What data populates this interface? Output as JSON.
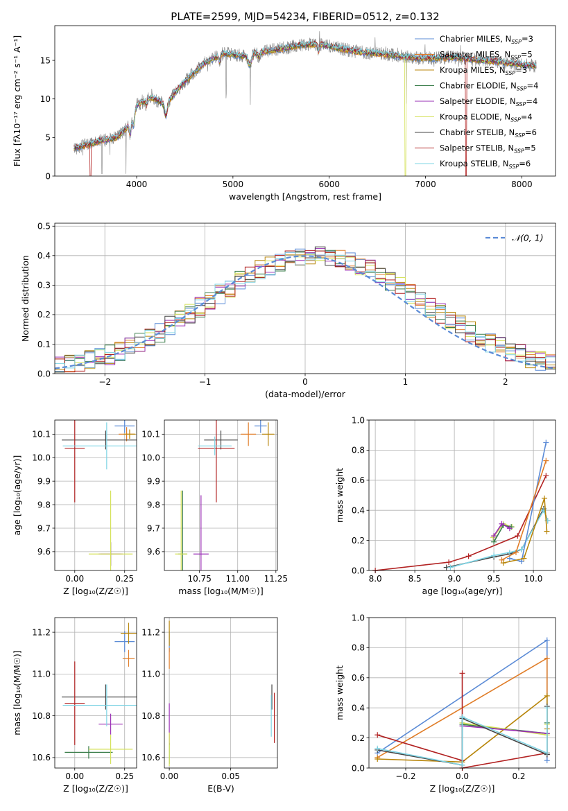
{
  "figure": {
    "title": "PLATE=2599, MJD=54234, FIBERID=0512, z=0.132"
  },
  "models": [
    {
      "name": "Chabrier MILES",
      "nssp": "3",
      "color": "#5b8bd6"
    },
    {
      "name": "Salpeter MILES",
      "nssp": "5",
      "color": "#e07d28"
    },
    {
      "name": "Kroupa MILES",
      "nssp": "3",
      "color": "#b8860b"
    },
    {
      "name": "Chabrier ELODIE",
      "nssp": "4",
      "color": "#3a7d4a"
    },
    {
      "name": "Salpeter ELODIE",
      "nssp": "4",
      "color": "#9a2fb5"
    },
    {
      "name": "Kroupa ELODIE",
      "nssp": "4",
      "color": "#d4e157"
    },
    {
      "name": "Chabrier STELIB",
      "nssp": "6",
      "color": "#454545"
    },
    {
      "name": "Salpeter STELIB",
      "nssp": "5",
      "color": "#b22222"
    },
    {
      "name": "Kroupa STELIB",
      "nssp": "6",
      "color": "#7fd4e4"
    }
  ],
  "chart_data": [
    {
      "id": "spectrum",
      "type": "line",
      "xlabel": "wavelength [Angstrom, rest frame]",
      "ylabel": "Flux [fλ10⁻¹⁷ erg cm⁻² s⁻¹ A⁻¹]",
      "xlim": [
        3150,
        8350
      ],
      "ylim": [
        0,
        19.5
      ],
      "xticks": [
        4000,
        5000,
        6000,
        7000,
        8000
      ],
      "yticks": [
        0,
        5,
        10,
        15
      ],
      "grid": false,
      "legend": "top-right",
      "data_color": "#808080",
      "continuum": {
        "x": [
          3350,
          3600,
          3800,
          3900,
          4000,
          4150,
          4300,
          4500,
          4700,
          4900,
          5100,
          5300,
          5500,
          5700,
          5900,
          6100,
          6300,
          6500,
          6700,
          6900,
          7100,
          7300,
          7500,
          7700,
          7900,
          8150
        ],
        "y": [
          3.6,
          4.5,
          5.0,
          6.3,
          9.2,
          10.2,
          9.3,
          12.3,
          14.6,
          15.9,
          15.6,
          16.1,
          16.5,
          17.0,
          17.1,
          16.6,
          16.1,
          15.9,
          15.6,
          15.3,
          15.3,
          15.4,
          15.1,
          14.9,
          14.6,
          14.3
        ]
      },
      "data_dropouts": [
        3640,
        3890,
        4930,
        5180,
        6800
      ],
      "model_dropouts": [
        {
          "model": "Salpeter STELIB",
          "x": 7420
        },
        {
          "model": "Salpeter STELIB",
          "x": 3520
        },
        {
          "model": "Kroupa ELODIE",
          "x": 6790
        }
      ]
    },
    {
      "id": "residuals",
      "type": "line",
      "xlabel": "(data-model)/error",
      "ylabel": "Normed distribution",
      "xlim": [
        -2.5,
        2.5
      ],
      "ylim": [
        0,
        0.51
      ],
      "xticks": [
        -2,
        -1,
        0,
        1,
        2
      ],
      "yticks": [
        0.0,
        0.1,
        0.2,
        0.3,
        0.4,
        0.5
      ],
      "grid": true,
      "legend": "top-right",
      "reference_label": "𝒩(0, 1)",
      "reference_color": "#5b8bd6",
      "bin_width": 0.1
    },
    {
      "id": "age-vs-Z",
      "type": "scatter",
      "xlabel": "Z [log₁₀(Z/Z☉)]",
      "ylabel": "age  [log₁₀(age/yr)]",
      "xlim": [
        -0.1,
        0.31
      ],
      "ylim": [
        9.52,
        10.16
      ],
      "xticks": [
        0.0,
        0.25
      ],
      "yticks": [
        9.6,
        9.7,
        9.8,
        9.9,
        10.0,
        10.1
      ],
      "grid": true,
      "points": [
        {
          "model": "Chabrier MILES",
          "x": 0.25,
          "y": 10.135,
          "xerr": 0.05,
          "yerr": 0.03
        },
        {
          "model": "Salpeter MILES",
          "x": 0.26,
          "y": 10.1,
          "xerr": 0.04,
          "yerr": 0.03
        },
        {
          "model": "Kroupa MILES",
          "x": 0.275,
          "y": 10.1,
          "xerr": 0.03,
          "yerr": 0.02
        },
        {
          "model": "Chabrier ELODIE",
          "x": 0.18,
          "y": 9.59,
          "xerr": 0.05,
          "yerr": 0.05
        },
        {
          "model": "Salpeter ELODIE",
          "x": 0.18,
          "y": 9.59,
          "xerr": 0.06,
          "yerr": 0.05
        },
        {
          "model": "Kroupa ELODIE",
          "x": 0.18,
          "y": 9.59,
          "xerr": 0.11,
          "yerr": 0.27
        },
        {
          "model": "Chabrier STELIB",
          "x": 0.155,
          "y": 10.075,
          "xerr": 0.22,
          "yerr": 0.04
        },
        {
          "model": "Salpeter STELIB",
          "x": 0.0,
          "y": 10.04,
          "xerr": 0.05,
          "yerr": 0.23
        },
        {
          "model": "Kroupa STELIB",
          "x": 0.16,
          "y": 10.05,
          "xerr": 0.22,
          "yerr": 0.1
        }
      ]
    },
    {
      "id": "age-vs-mass",
      "type": "scatter",
      "xlabel": "mass [log₁₀(M/M☉)]",
      "ylabel": "",
      "xlim": [
        10.52,
        11.26
      ],
      "ylim": [
        9.52,
        10.16
      ],
      "xticks": [
        10.75,
        11.0,
        11.25
      ],
      "yticks": [
        9.6,
        9.7,
        9.8,
        9.9,
        10.0,
        10.1
      ],
      "grid": true,
      "points": [
        {
          "model": "Chabrier MILES",
          "x": 11.15,
          "y": 10.135,
          "xerr": 0.04,
          "yerr": 0.03
        },
        {
          "model": "Salpeter MILES",
          "x": 11.07,
          "y": 10.1,
          "xerr": 0.05,
          "yerr": 0.05
        },
        {
          "model": "Kroupa MILES",
          "x": 11.2,
          "y": 10.1,
          "xerr": 0.04,
          "yerr": 0.05
        },
        {
          "model": "Chabrier ELODIE",
          "x": 10.64,
          "y": 9.59,
          "xerr": 0.03,
          "yerr": 0.27
        },
        {
          "model": "Salpeter ELODIE",
          "x": 10.76,
          "y": 9.59,
          "xerr": 0.05,
          "yerr": 0.25
        },
        {
          "model": "Kroupa ELODIE",
          "x": 10.63,
          "y": 9.59,
          "xerr": 0.04,
          "yerr": 0.27
        },
        {
          "model": "Chabrier STELIB",
          "x": 10.89,
          "y": 10.075,
          "xerr": 0.11,
          "yerr": 0.04
        },
        {
          "model": "Salpeter STELIB",
          "x": 10.86,
          "y": 10.04,
          "xerr": 0.12,
          "yerr": 0.23
        },
        {
          "model": "Kroupa STELIB",
          "x": 10.85,
          "y": 10.05,
          "xerr": 0.11,
          "yerr": 0.04
        }
      ]
    },
    {
      "id": "mass-weight-vs-age",
      "type": "line",
      "xlabel": "age  [log₁₀(age/yr)]",
      "ylabel": "mass weight",
      "xlim": [
        7.92,
        10.28
      ],
      "ylim": [
        0,
        1.0
      ],
      "xticks": [
        8.0,
        8.5,
        9.0,
        9.5,
        10.0
      ],
      "yticks": [
        0.0,
        0.2,
        0.4,
        0.6,
        0.8,
        1.0
      ],
      "grid": true,
      "series": [
        {
          "model": "Kroupa ELODIE",
          "x": [
            9.49,
            9.62,
            9.73
          ],
          "y": [
            0.22,
            0.31,
            0.29
          ]
        },
        {
          "model": "Chabrier ELODIE",
          "x": [
            9.5,
            9.62,
            9.72
          ],
          "y": [
            0.19,
            0.3,
            0.29
          ]
        },
        {
          "model": "Salpeter ELODIE",
          "x": [
            9.5,
            9.6,
            9.7
          ],
          "y": [
            0.23,
            0.31,
            0.28
          ]
        },
        {
          "model": "Salpeter STELIB",
          "x": [
            8.0,
            8.93,
            9.18,
            9.8,
            10.16
          ],
          "y": [
            0.0,
            0.055,
            0.095,
            0.23,
            0.63
          ]
        },
        {
          "model": "Chabrier STELIB",
          "x": [
            8.9,
            9.5,
            9.7,
            9.85,
            10.13,
            10.18
          ],
          "y": [
            0.02,
            0.09,
            0.11,
            0.14,
            0.41,
            0.33
          ]
        },
        {
          "model": "Kroupa STELIB",
          "x": [
            8.95,
            9.5,
            9.7,
            9.85,
            10.13,
            10.18
          ],
          "y": [
            0.02,
            0.1,
            0.12,
            0.14,
            0.4,
            0.33
          ]
        },
        {
          "model": "Chabrier MILES",
          "x": [
            9.7,
            9.85,
            10.16
          ],
          "y": [
            0.08,
            0.06,
            0.85
          ]
        },
        {
          "model": "Salpeter MILES",
          "x": [
            9.6,
            9.78,
            10.16
          ],
          "y": [
            0.07,
            0.12,
            0.73
          ]
        },
        {
          "model": "Kroupa MILES",
          "x": [
            9.62,
            9.88,
            10.14,
            10.17
          ],
          "y": [
            0.05,
            0.08,
            0.48,
            0.26
          ]
        }
      ]
    },
    {
      "id": "mass-vs-Z",
      "type": "scatter",
      "xlabel": "Z [log₁₀(Z/Z☉)]",
      "ylabel": "mass [log₁₀(M/M☉)]",
      "xlim": [
        -0.1,
        0.31
      ],
      "ylim": [
        10.55,
        11.27
      ],
      "xticks": [
        0.0,
        0.25
      ],
      "yticks": [
        10.6,
        10.8,
        11.0,
        11.2
      ],
      "grid": true,
      "points": [
        {
          "model": "Chabrier MILES",
          "x": 0.25,
          "y": 11.155,
          "xerr": 0.05,
          "yerr": 0.05
        },
        {
          "model": "Salpeter MILES",
          "x": 0.27,
          "y": 11.075,
          "xerr": 0.03,
          "yerr": 0.04
        },
        {
          "model": "Kroupa MILES",
          "x": 0.27,
          "y": 11.195,
          "xerr": 0.04,
          "yerr": 0.05
        },
        {
          "model": "Chabrier ELODIE",
          "x": 0.07,
          "y": 10.625,
          "xerr": 0.12,
          "yerr": 0.03
        },
        {
          "model": "Salpeter ELODIE",
          "x": 0.18,
          "y": 10.76,
          "xerr": 0.06,
          "yerr": 0.05
        },
        {
          "model": "Kroupa ELODIE",
          "x": 0.18,
          "y": 10.64,
          "xerr": 0.11,
          "yerr": 0.07
        },
        {
          "model": "Chabrier STELIB",
          "x": 0.155,
          "y": 10.89,
          "xerr": 0.22,
          "yerr": 0.06
        },
        {
          "model": "Salpeter STELIB",
          "x": 0.0,
          "y": 10.86,
          "xerr": 0.05,
          "yerr": 0.2
        },
        {
          "model": "Kroupa STELIB",
          "x": 0.16,
          "y": 10.85,
          "xerr": 0.22,
          "yerr": 0.1
        }
      ]
    },
    {
      "id": "mass-vs-EBV",
      "type": "scatter",
      "xlabel": "E(B-V)",
      "ylabel": "",
      "xlim": [
        -0.004,
        0.088
      ],
      "ylim": [
        10.55,
        11.27
      ],
      "xticks": [
        0.0,
        0.05
      ],
      "yticks": [
        10.6,
        10.8,
        11.0,
        11.2
      ],
      "grid": true,
      "points": [
        {
          "model": "Chabrier MILES",
          "x": 0.0,
          "y": 11.155,
          "yerr": 0.05
        },
        {
          "model": "Salpeter MILES",
          "x": 0.0,
          "y": 11.075,
          "yerr": 0.05
        },
        {
          "model": "Kroupa MILES",
          "x": 0.0,
          "y": 11.195,
          "yerr": 0.06
        },
        {
          "model": "Chabrier ELODIE",
          "x": 0.0,
          "y": 10.62,
          "yerr": 0.05
        },
        {
          "model": "Salpeter ELODIE",
          "x": 0.0,
          "y": 10.76,
          "yerr": 0.1
        },
        {
          "model": "Kroupa ELODIE",
          "x": 0.0,
          "y": 10.64,
          "yerr": 0.08
        },
        {
          "model": "Chabrier STELIB",
          "x": 0.0835,
          "y": 10.89,
          "yerr": 0.06
        },
        {
          "model": "Salpeter STELIB",
          "x": 0.0855,
          "y": 10.79,
          "yerr": 0.12
        },
        {
          "model": "Kroupa STELIB",
          "x": 0.083,
          "y": 10.8,
          "yerr": 0.1
        }
      ]
    },
    {
      "id": "mass-weight-vs-Z",
      "type": "line",
      "xlabel": "Z [log₁₀(Z/Z☉)]",
      "ylabel": "mass weight",
      "xlim": [
        -0.33,
        0.33
      ],
      "ylim": [
        0,
        1.0
      ],
      "xticks": [
        -0.2,
        0.0,
        0.2
      ],
      "yticks": [
        0.0,
        0.2,
        0.4,
        0.6,
        0.8,
        1.0
      ],
      "grid": true,
      "series": [
        {
          "model": "Chabrier MILES",
          "x": [
            -0.3,
            0.3,
            0.3
          ],
          "y": [
            0.1,
            0.85,
            0.05
          ]
        },
        {
          "model": "Salpeter MILES",
          "x": [
            -0.3,
            0.3,
            0.3
          ],
          "y": [
            0.07,
            0.73,
            0.1
          ]
        },
        {
          "model": "Kroupa MILES",
          "x": [
            -0.3,
            0.0,
            0.3,
            0.3
          ],
          "y": [
            0.06,
            0.04,
            0.48,
            0.26
          ]
        },
        {
          "model": "Chabrier ELODIE",
          "x": [
            0.0,
            0.3,
            0.3
          ],
          "y": [
            0.29,
            0.23,
            0.3
          ]
        },
        {
          "model": "Kroupa ELODIE",
          "x": [
            0.0,
            0.3,
            0.3
          ],
          "y": [
            0.3,
            0.22,
            0.29
          ]
        },
        {
          "model": "Salpeter ELODIE",
          "x": [
            0.0,
            0.3
          ],
          "y": [
            0.28,
            0.23
          ]
        },
        {
          "model": "Salpeter STELIB",
          "x": [
            -0.3,
            0.0,
            0.0,
            0.0,
            0.3,
            0.3
          ],
          "y": [
            0.22,
            0.05,
            0.63,
            0.0,
            0.1,
            0.09
          ]
        },
        {
          "model": "Chabrier STELIB",
          "x": [
            -0.3,
            0.0,
            0.0,
            0.3,
            0.3
          ],
          "y": [
            0.12,
            0.02,
            0.33,
            0.09,
            0.41
          ]
        },
        {
          "model": "Kroupa STELIB",
          "x": [
            -0.3,
            0.0,
            0.0,
            0.3,
            0.3
          ],
          "y": [
            0.13,
            0.02,
            0.34,
            0.1,
            0.4
          ]
        }
      ]
    }
  ]
}
